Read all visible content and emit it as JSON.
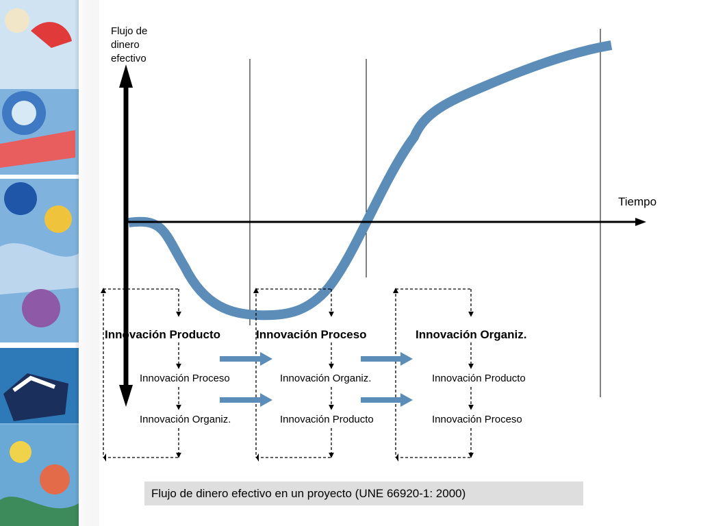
{
  "axes": {
    "y_label": "Flujo de\ndinero\nefectivo",
    "x_label": "Tiempo"
  },
  "stages": [
    {
      "title": "Innovación Producto",
      "items": [
        "Innovación Proceso",
        "Innovación Organiz."
      ]
    },
    {
      "title": "Innovación Proceso",
      "items": [
        "Innovación Organiz.",
        "Innovación Producto"
      ]
    },
    {
      "title": "Innovación Organiz.",
      "items": [
        "Innovación Producto",
        "Innovación Proceso"
      ]
    }
  ],
  "caption": "Flujo de dinero efectivo en un proyecto (UNE 66920-1: 2000)",
  "colors": {
    "curve": "#5b8db8",
    "arrow_block": "#5b8db8",
    "axis": "#000000",
    "caption_bg": "#dedede"
  }
}
